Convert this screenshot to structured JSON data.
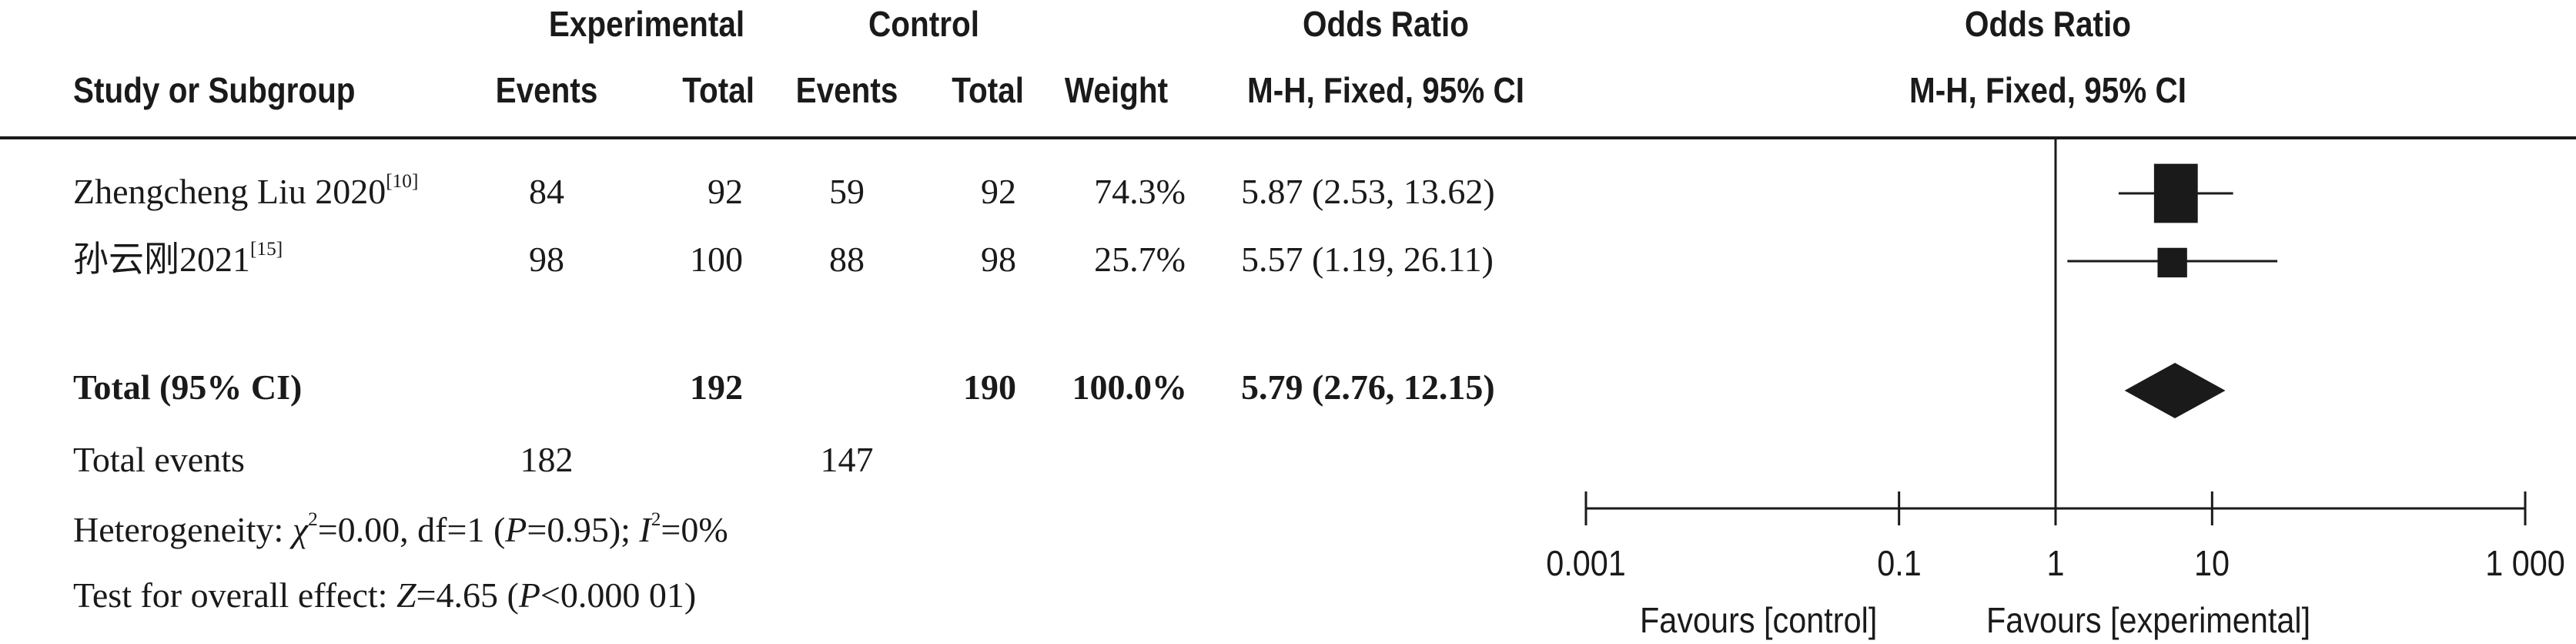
{
  "headers": {
    "experimental": "Experimental",
    "control": "Control",
    "odds_ratio_left": "Odds Ratio",
    "odds_ratio_right": "Odds Ratio",
    "study": "Study or Subgroup",
    "exp_events": "Events",
    "exp_total": "Total",
    "ctl_events": "Events",
    "ctl_total": "Total",
    "weight": "Weight",
    "method_left": "M-H, Fixed, 95% CI",
    "method_right": "M-H, Fixed, 95% CI"
  },
  "studies": [
    {
      "name": "Zhengcheng Liu 2020",
      "ref": "[10]",
      "exp_events": "84",
      "exp_total": "92",
      "ctl_events": "59",
      "ctl_total": "92",
      "weight": "74.3%",
      "ci_text": "5.87 (2.53, 13.62)"
    },
    {
      "name": "孙云刚2021",
      "ref": "[15]",
      "exp_events": "98",
      "exp_total": "100",
      "ctl_events": "88",
      "ctl_total": "98",
      "weight": "25.7%",
      "ci_text": "5.57 (1.19, 26.11)"
    }
  ],
  "total": {
    "label": "Total (95% CI)",
    "exp_total": "192",
    "ctl_total": "190",
    "weight": "100.0%",
    "ci_text": "5.79 (2.76, 12.15)"
  },
  "total_events": {
    "label": "Total events",
    "exp": "182",
    "ctl": "147"
  },
  "heterogeneity": {
    "prefix": "Heterogeneity: ",
    "chi_symbol": "χ",
    "chi_sup": "2",
    "chi_value": "=0.00, df=1 (",
    "p_symbol": "P",
    "p_value": "=0.95); ",
    "i_symbol": "I",
    "i_sup": "2",
    "i_value": "=0%"
  },
  "overall_effect": {
    "prefix": "Test for overall effect: ",
    "z_symbol": "Z",
    "z_value": "=4.65 (",
    "p_symbol": "P",
    "p_value": "<0.000 01)"
  },
  "favours": {
    "left": "Favours [control]",
    "right": "Favours [experimental]"
  },
  "chart_data": {
    "type": "forest",
    "scale": "log",
    "x_range": [
      0.001,
      1000
    ],
    "ticks": [
      {
        "value": 0.001,
        "label": "0.001"
      },
      {
        "value": 0.1,
        "label": "0.1"
      },
      {
        "value": 1,
        "label": "1"
      },
      {
        "value": 10,
        "label": "10"
      },
      {
        "value": 1000,
        "label": "1 000"
      }
    ],
    "reference_line": 1,
    "studies": [
      {
        "or": 5.87,
        "lower": 2.53,
        "upper": 13.62,
        "weight": 74.3
      },
      {
        "or": 5.57,
        "lower": 1.19,
        "upper": 26.11,
        "weight": 25.7
      }
    ],
    "pooled": {
      "or": 5.79,
      "lower": 2.76,
      "upper": 12.15
    },
    "colors": {
      "ink": "#1a1a1a"
    }
  }
}
